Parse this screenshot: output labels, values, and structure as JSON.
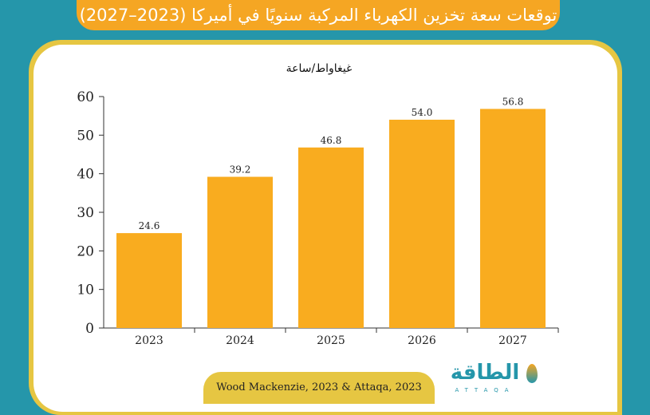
{
  "title": "توقعات سعة تخزين الكهرباء المركبة سنويًا في أميركا (2023–2027)",
  "source": "Wood Mackenzie, 2023 & Attaqa, 2023",
  "logo": {
    "arabic": "الطاقة",
    "latin": "ATTAQA"
  },
  "colors": {
    "background": "#2596aa",
    "bar": "#f9ac1f",
    "banner": "#f5a623",
    "frame": "#e6c642"
  },
  "chart_data": {
    "type": "bar",
    "title": "",
    "ylabel": "غيغاواط/ساعة",
    "xlabel": "",
    "categories": [
      "2023",
      "2024",
      "2025",
      "2026",
      "2027"
    ],
    "values": [
      24.6,
      39.2,
      46.8,
      54.0,
      56.8
    ],
    "value_labels": [
      "24.6",
      "39.2",
      "46.8",
      "54.0",
      "56.8"
    ],
    "ylim": [
      0,
      60
    ],
    "yticks": [
      "0",
      "10",
      "20",
      "30",
      "40",
      "50",
      "60"
    ],
    "grid": false,
    "legend": "none"
  }
}
